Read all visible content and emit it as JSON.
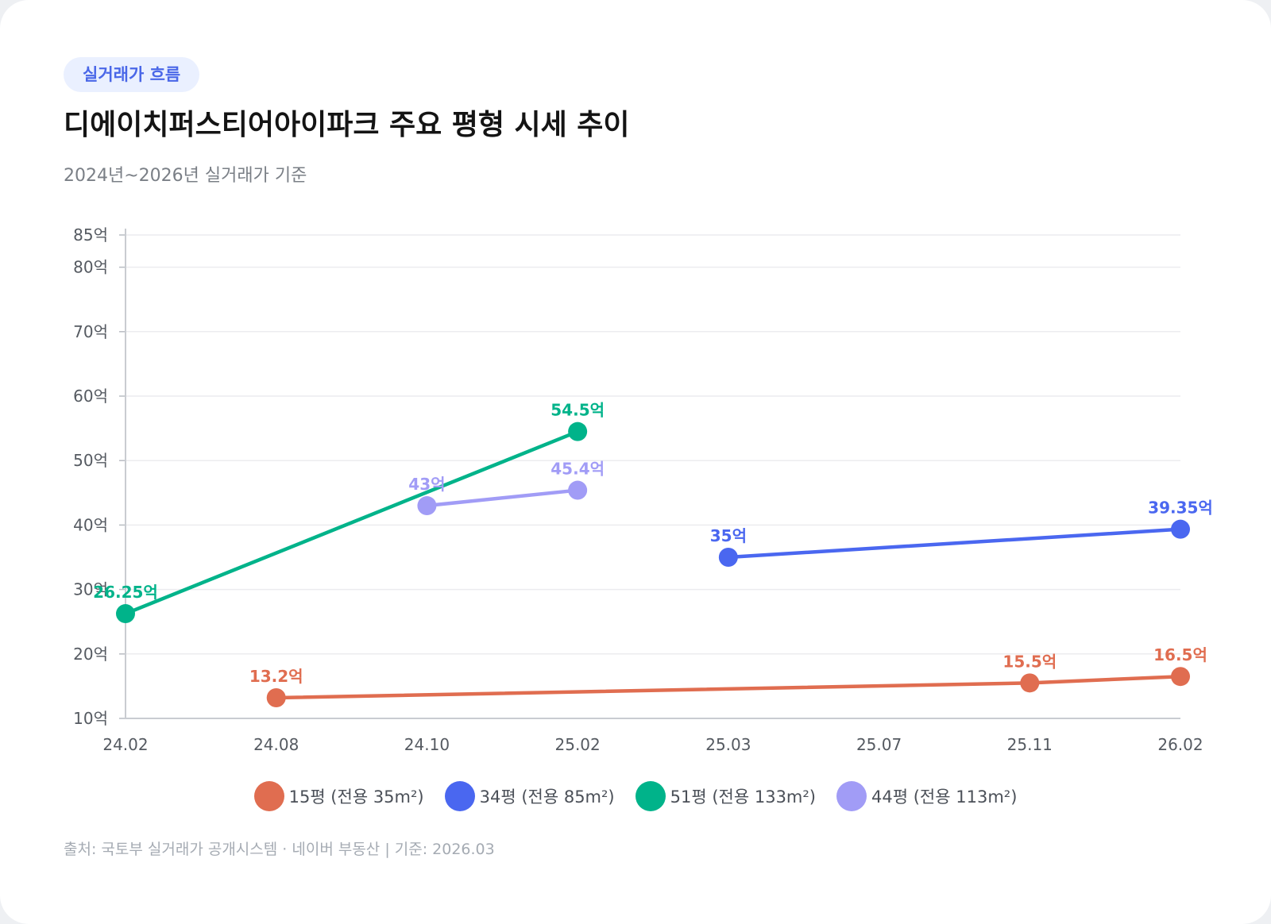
{
  "badge": "실거래가 흐름",
  "title": "디에이치퍼스티어아이파크 주요 평형 시세 추이",
  "subtitle": "2024년~2026년 실거래가 기준",
  "footer": "출처: 국토부 실거래가 공개시스템 · 네이버 부동산 | 기준: 2026.03",
  "chart_data": {
    "type": "line",
    "title": "디에이치퍼스티어아이파크 주요 평형 시세 추이",
    "xlabel": "",
    "ylabel": "",
    "categories": [
      "24.02",
      "24.08",
      "24.10",
      "25.02",
      "25.03",
      "25.07",
      "25.11",
      "26.02"
    ],
    "y_ticks": [
      10,
      20,
      30,
      40,
      50,
      60,
      70,
      80,
      85
    ],
    "y_tick_labels": [
      "10억",
      "20억",
      "30억",
      "40억",
      "50억",
      "60억",
      "70억",
      "80억",
      "85억"
    ],
    "ylim": [
      10,
      85
    ],
    "grid": true,
    "legend_position": "bottom",
    "series": [
      {
        "name": "15평 (전용 35m²)",
        "color": "#e06d50",
        "points": [
          {
            "x": "24.08",
            "y": 13.2,
            "label": "13.2억"
          },
          {
            "x": "25.11",
            "y": 15.5,
            "label": "15.5억"
          },
          {
            "x": "26.02",
            "y": 16.5,
            "label": "16.5억"
          }
        ]
      },
      {
        "name": "34평 (전용 85m²)",
        "color": "#4a67f0",
        "points": [
          {
            "x": "25.03",
            "y": 35,
            "label": "35억"
          },
          {
            "x": "26.02",
            "y": 39.35,
            "label": "39.35억"
          }
        ]
      },
      {
        "name": "51평 (전용 133m²)",
        "color": "#00b38a",
        "points": [
          {
            "x": "24.02",
            "y": 26.25,
            "label": "26.25억"
          },
          {
            "x": "25.02",
            "y": 54.5,
            "label": "54.5억"
          }
        ]
      },
      {
        "name": "44평 (전용 113m²)",
        "color": "#a19cf6",
        "points": [
          {
            "x": "24.10",
            "y": 43,
            "label": "43억"
          },
          {
            "x": "25.02",
            "y": 45.4,
            "label": "45.4억"
          }
        ]
      }
    ]
  }
}
